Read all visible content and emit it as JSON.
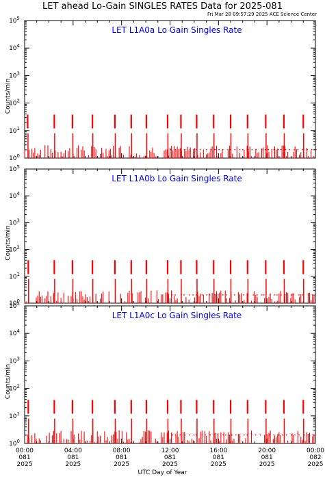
{
  "title": "LET ahead Lo-Gain SINGLES RATES Data for 2025-081",
  "timestamp": "Fri Mar 28 09:57:29 2025 ACE Science Center",
  "x_axis_title": "UTC Day of Year",
  "colors": {
    "data": "#ff0000",
    "panel_title": "#0000ff",
    "axes": "#000000"
  },
  "chart_data": [
    {
      "type": "line",
      "title": "LET L1A0a Lo Gain Singles Rate",
      "ylabel": "Counts/min",
      "yscale": "log",
      "ylim": [
        1,
        100000
      ],
      "xlim": [
        0,
        24
      ],
      "spike_times_hours": [
        0.25,
        2.45,
        3.95,
        5.6,
        7.45,
        8.8,
        10.05,
        11.8,
        12.9,
        14.2,
        15.6,
        17.0,
        18.4,
        19.9,
        21.4,
        23.0
      ],
      "spike_peak": 38,
      "baseline_range": [
        1,
        3
      ]
    },
    {
      "type": "line",
      "title": "LET L1A0b Lo Gain Singles Rate",
      "ylabel": "Counts/min",
      "yscale": "log",
      "ylim": [
        1,
        100000
      ],
      "xlim": [
        0,
        24
      ],
      "spike_times_hours": [
        0.3,
        2.45,
        3.95,
        5.6,
        7.45,
        8.8,
        10.05,
        11.8,
        12.9,
        14.2,
        15.6,
        17.0,
        18.4,
        19.9,
        21.4,
        23.0
      ],
      "spike_peak": 40,
      "baseline_range": [
        1,
        3
      ]
    },
    {
      "type": "line",
      "title": "LET L1A0c Lo Gain Singles Rate",
      "ylabel": "Counts/min",
      "yscale": "log",
      "ylim": [
        1,
        100000
      ],
      "xlim": [
        0,
        24
      ],
      "spike_times_hours": [
        0.3,
        2.45,
        3.95,
        5.6,
        7.45,
        8.8,
        10.05,
        11.8,
        12.9,
        14.2,
        15.6,
        17.0,
        18.4,
        19.9,
        21.4,
        23.0
      ],
      "spike_peak": 38,
      "baseline_range": [
        1,
        3
      ]
    }
  ],
  "y_tick_labels": [
    {
      "base": "10",
      "exp": "0"
    },
    {
      "base": "10",
      "exp": "1"
    },
    {
      "base": "10",
      "exp": "2"
    },
    {
      "base": "10",
      "exp": "3"
    },
    {
      "base": "10",
      "exp": "4"
    },
    {
      "base": "10",
      "exp": "5"
    }
  ],
  "x_tick_labels": [
    {
      "hours": 0,
      "time": "00:00",
      "doy": "081",
      "year": "2025"
    },
    {
      "hours": 4,
      "time": "04:00",
      "doy": "081",
      "year": "2025"
    },
    {
      "hours": 8,
      "time": "08:00",
      "doy": "081",
      "year": "2025"
    },
    {
      "hours": 12,
      "time": "12:00",
      "doy": "081",
      "year": "2025"
    },
    {
      "hours": 16,
      "time": "16:00",
      "doy": "081",
      "year": "2025"
    },
    {
      "hours": 20,
      "time": "20:00",
      "doy": "081",
      "year": "2025"
    },
    {
      "hours": 24,
      "time": "00:00",
      "doy": "082",
      "year": "2025"
    }
  ]
}
